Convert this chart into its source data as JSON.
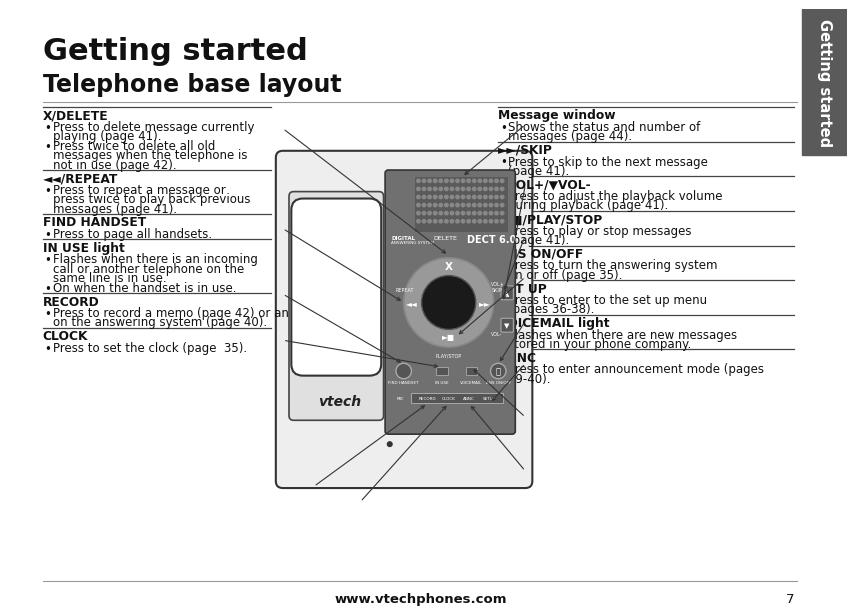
{
  "title": "Getting started",
  "subtitle": "Telephone base layout",
  "bg_color": "#ffffff",
  "sidebar_color": "#5a5a5a",
  "sidebar_text": "Getting started",
  "footer_text": "www.vtechphones.com",
  "footer_page": "7",
  "left_sections": [
    {
      "header": "X/DELETE",
      "bullets": [
        "Press to delete message currently\nplaying (page 41).",
        "Press twice to delete all old\nmessages when the telephone is\nnot in use (page 42)."
      ]
    },
    {
      "header": "◄◄/REPEAT",
      "bullets": [
        "Press to repeat a message or\npress twice to play back previous\nmessages (page 41)."
      ]
    },
    {
      "header": "FIND HANDSET",
      "bullets": [
        "Press to page all handsets."
      ]
    },
    {
      "header": "IN USE light",
      "bullets": [
        "Flashes when there is an incoming\ncall or another telephone on the\nsame line is in use.",
        "On when the handset is in use."
      ]
    },
    {
      "header": "RECORD",
      "bullets": [
        "Press to record a memo (page 42) or an announcement\non the answering system (page 40)."
      ]
    },
    {
      "header": "CLOCK",
      "bullets": [
        "Press to set the clock (page  35)."
      ]
    }
  ],
  "right_sections": [
    {
      "header": "Message window",
      "bullets": [
        "Shows the status and number of\nmessages (page 44)."
      ]
    },
    {
      "header": "►►/SKIP",
      "bullets": [
        "Press to skip to the next message\n(page 41)."
      ]
    },
    {
      "header": "▲VOL+/▼VOL-",
      "bullets": [
        "Press to adjust the playback volume\nduring playback (page 41)."
      ]
    },
    {
      "header": "►/■/PLAY/STOP",
      "bullets": [
        "Press to play or stop messages\n(page 41)."
      ]
    },
    {
      "header": "ANS ON/OFF",
      "bullets": [
        "Press to turn the answering system\non or off (page 35)."
      ]
    },
    {
      "header": "SET UP",
      "bullets": [
        "Press to enter to the set up menu\n(pages 36-38)."
      ]
    },
    {
      "header": "VOICEMAIL light",
      "bullets": [
        "Flashes when there are new messages\nstored in your phone company."
      ]
    },
    {
      "header": "ANNC",
      "bullets": [
        "Press to enter announcement mode (pages\n39-40)."
      ]
    }
  ]
}
